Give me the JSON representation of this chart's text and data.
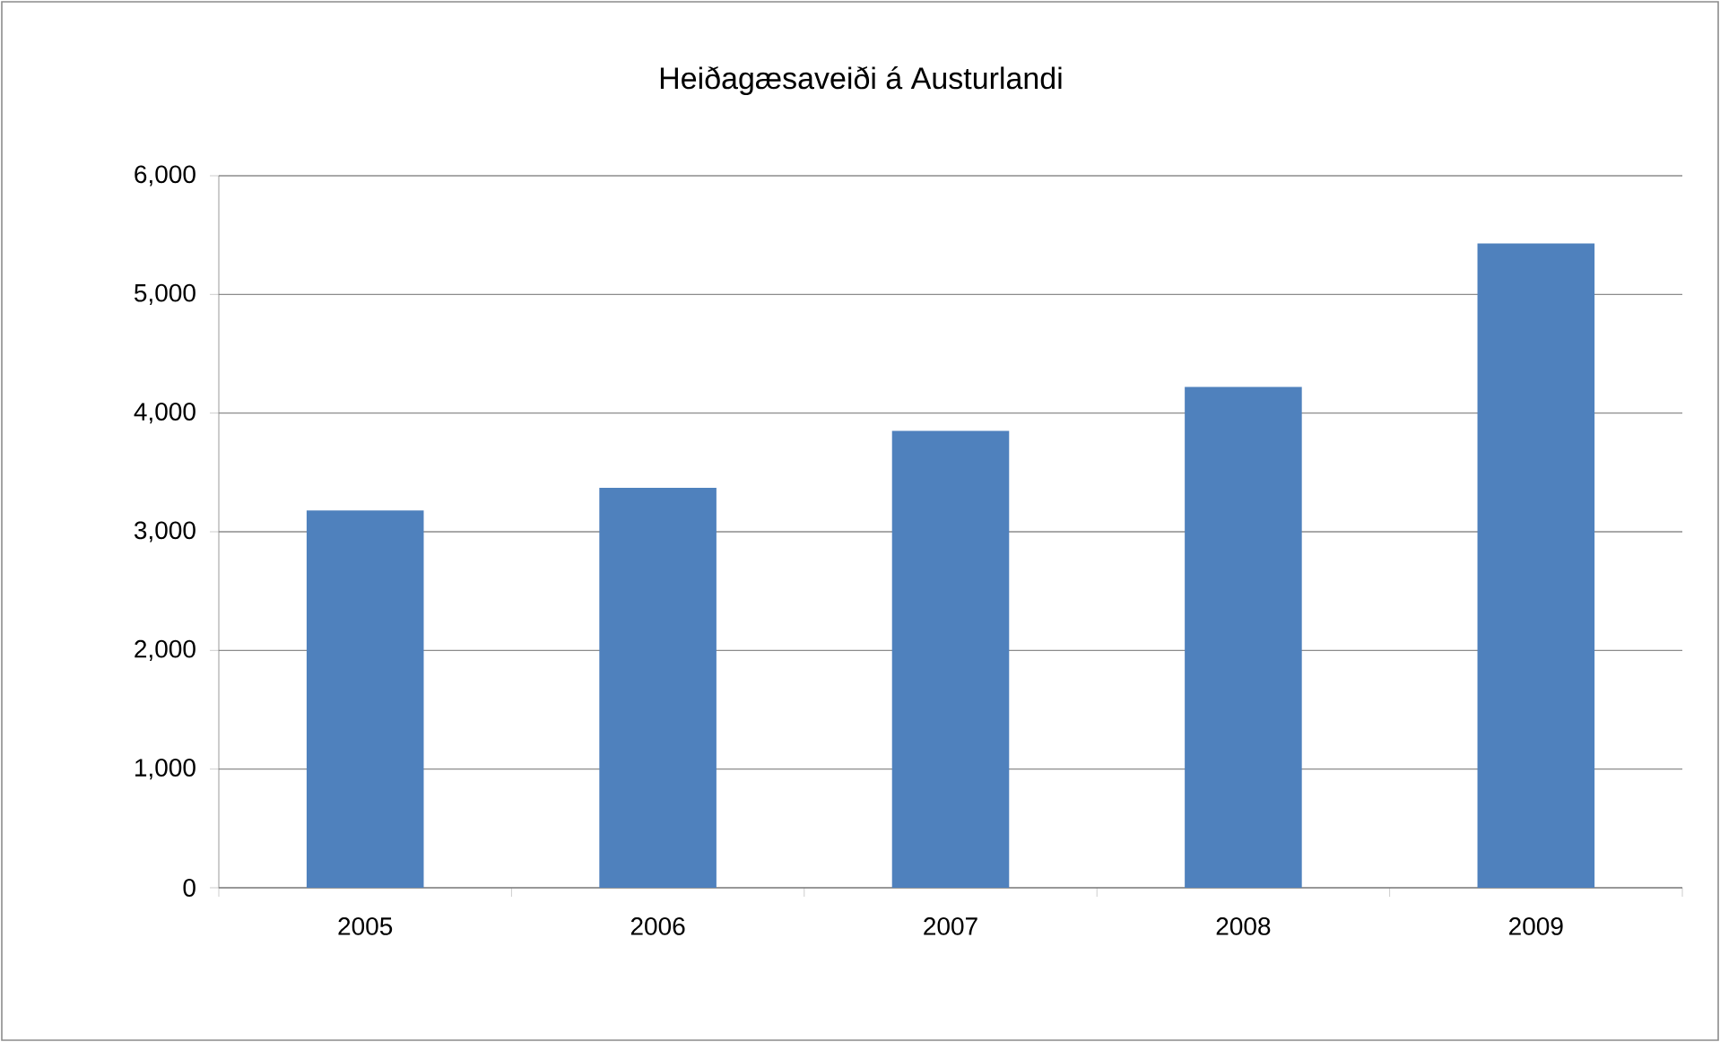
{
  "chart_data": {
    "type": "bar",
    "title": "Heiðagæsaveiði á Austurlandi",
    "categories": [
      "2005",
      "2006",
      "2007",
      "2008",
      "2009"
    ],
    "values": [
      3180,
      3370,
      3850,
      4220,
      5430
    ],
    "color": "#4f81bd",
    "ylim": [
      0,
      6000
    ],
    "yticks": [
      0,
      {
        "value": 1000,
        "label": "1,000"
      },
      {
        "value": 2000,
        "label": "2,000"
      },
      {
        "value": 3000,
        "label": "3,000"
      },
      {
        "value": 4000,
        "label": "4,000"
      },
      {
        "value": 5000,
        "label": "5,000"
      },
      {
        "value": 6000,
        "label": "6,000"
      }
    ],
    "grid": "y"
  }
}
